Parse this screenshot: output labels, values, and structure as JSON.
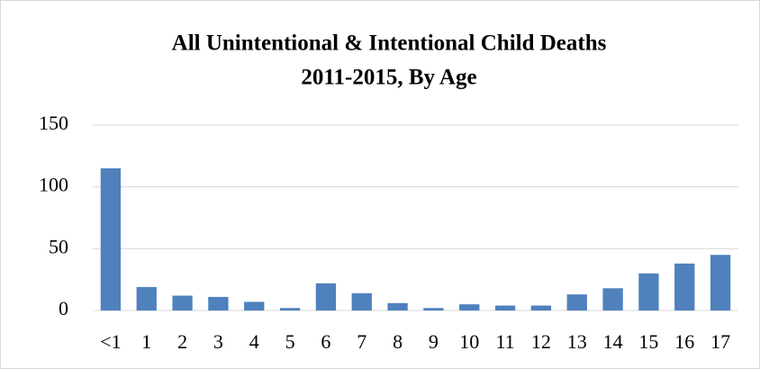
{
  "chart_data": {
    "type": "bar",
    "title": [
      "All Unintentional & Intentional Child Deaths",
      "2011-2015, By Age"
    ],
    "categories": [
      "<1",
      "1",
      "2",
      "3",
      "4",
      "5",
      "6",
      "7",
      "8",
      "9",
      "10",
      "11",
      "12",
      "13",
      "14",
      "15",
      "16",
      "17"
    ],
    "values": [
      115,
      19,
      12,
      11,
      7,
      2,
      22,
      14,
      6,
      2,
      5,
      4,
      4,
      13,
      18,
      30,
      38,
      45
    ],
    "color": "#4f81bd",
    "ylim": [
      0,
      150
    ],
    "yticks": [
      0,
      50,
      100,
      150
    ],
    "grid": true
  }
}
